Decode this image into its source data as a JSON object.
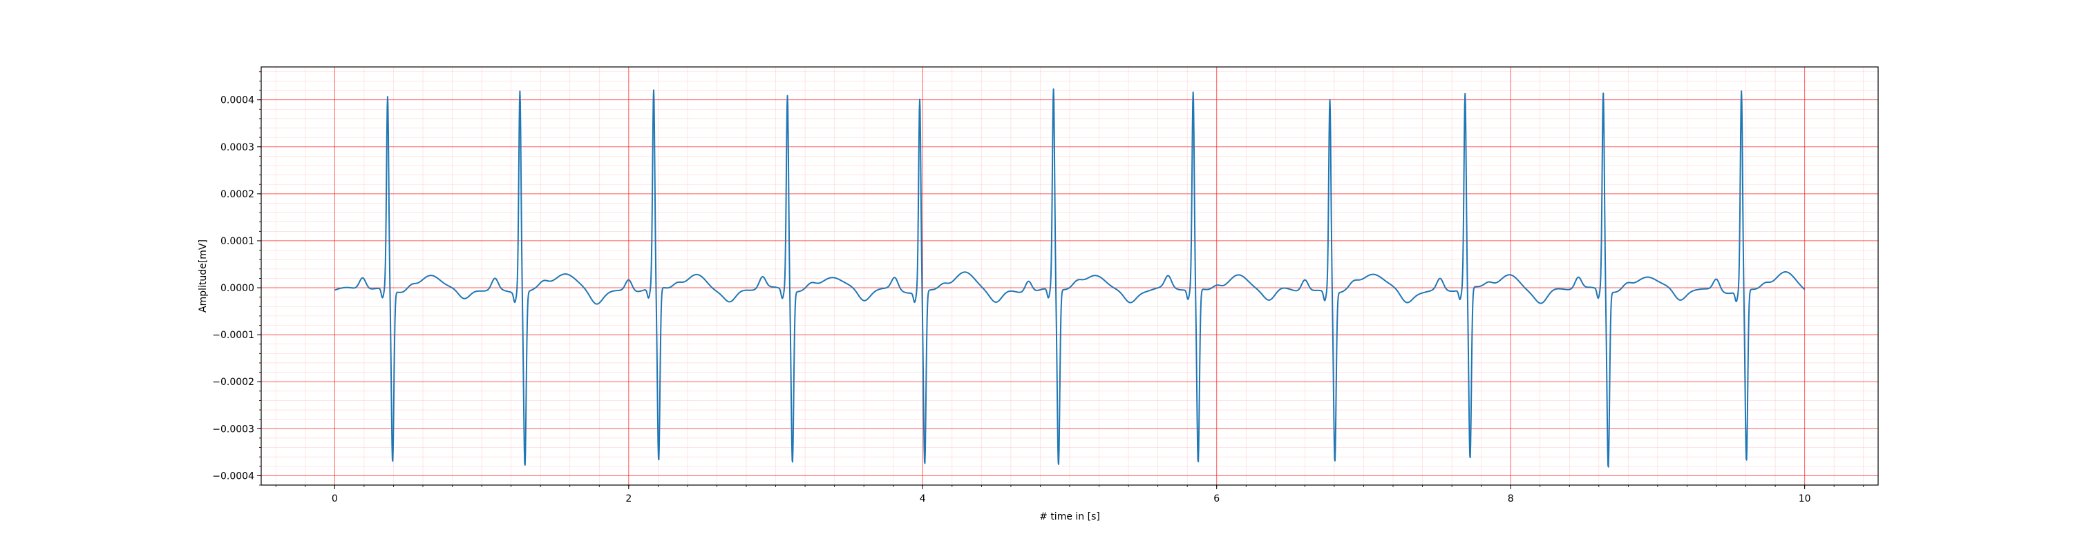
{
  "chart_data": {
    "type": "line",
    "title": "",
    "xlabel": "# time in [s]",
    "ylabel": "Amplitude[mV]",
    "xlim": [
      -0.5,
      10.5
    ],
    "ylim": [
      -0.00042,
      0.00047
    ],
    "x_ticks": [
      0,
      2,
      4,
      6,
      8,
      10
    ],
    "x_tick_labels": [
      "0",
      "2",
      "4",
      "6",
      "8",
      "10"
    ],
    "y_ticks": [
      -0.0004,
      -0.0003,
      -0.0002,
      -0.0001,
      0.0,
      0.0001,
      0.0002,
      0.0003,
      0.0004
    ],
    "y_tick_labels": [
      "−0.0004",
      "−0.0003",
      "−0.0002",
      "−0.0001",
      "0.0000",
      "0.0001",
      "0.0002",
      "0.0003",
      "0.0004"
    ],
    "grid": true,
    "grid_major_color": "#ff0000",
    "grid_minor_color": "#ffb0b0",
    "line_color": "#1f77b4",
    "series": [
      {
        "x_start": 0,
        "x_end": 10,
        "r_peak_times": [
          0.36,
          1.26,
          2.17,
          3.08,
          3.98,
          4.89,
          5.84,
          6.77,
          7.69,
          8.63,
          9.57
        ],
        "r_peak_values": [
          0.00041,
          0.00043,
          0.00042,
          0.000415,
          0.00041,
          0.000425,
          0.00042,
          0.00041,
          0.000415,
          0.00042,
          0.000425
        ],
        "s_trough_values": [
          -0.000365,
          -0.00037,
          -0.00037,
          -0.000365,
          -0.00037,
          -0.000375,
          -0.00037,
          -0.00036,
          -0.000365,
          -0.000375,
          -0.000365
        ],
        "p_wave_amplitude": 2.5e-05,
        "t_wave_amplitude": 3.2e-05,
        "baseline": -5e-06
      }
    ]
  }
}
